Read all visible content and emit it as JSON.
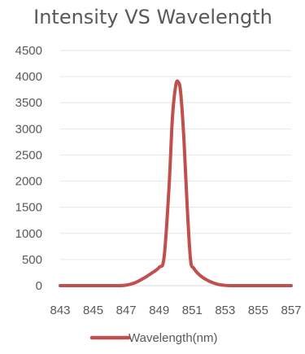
{
  "chart_data": {
    "type": "line",
    "title": "Intensity VS Wavelength",
    "xlabel": "",
    "ylabel": "",
    "xlim": [
      843,
      857
    ],
    "ylim": [
      0,
      4500
    ],
    "x_ticks": [
      843,
      845,
      847,
      849,
      851,
      853,
      855,
      857
    ],
    "y_ticks": [
      0,
      500,
      1000,
      1500,
      2000,
      2500,
      3000,
      3500,
      4000,
      4500
    ],
    "grid": true,
    "legend_position": "bottom",
    "series": [
      {
        "name": "Wavelength(nm)",
        "color": "#c0504d",
        "x": [
          843,
          845,
          846.5,
          847,
          847.5,
          848,
          848.5,
          849,
          849.3,
          849.6,
          849.8,
          850,
          850.15,
          850.3,
          850.5,
          850.7,
          850.9,
          851.1,
          851.5,
          852,
          852.5,
          853,
          853.5,
          855,
          857
        ],
        "y": [
          0,
          0,
          0,
          10,
          50,
          130,
          230,
          350,
          550,
          1900,
          3200,
          3820,
          3900,
          3700,
          2800,
          1500,
          500,
          330,
          190,
          90,
          30,
          5,
          0,
          0,
          0
        ]
      }
    ]
  }
}
